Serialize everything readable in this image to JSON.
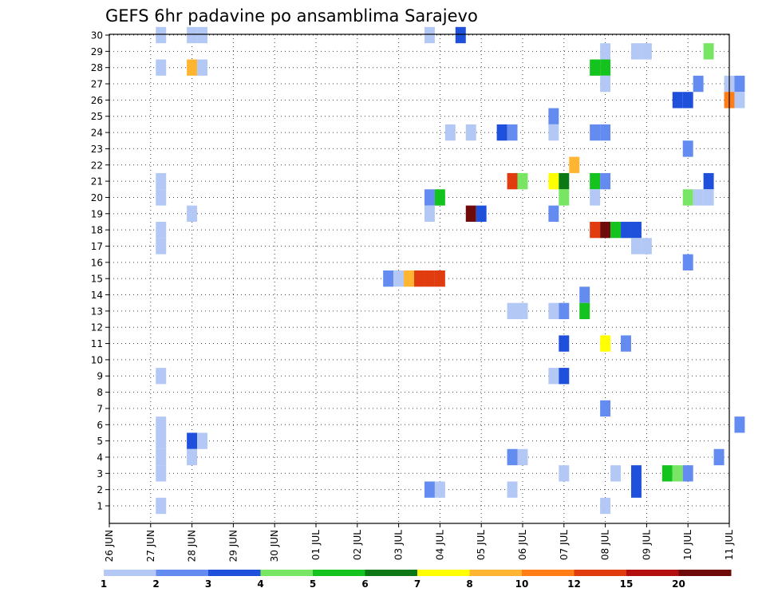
{
  "chart_data": {
    "type": "heatmap",
    "title": "GEFS 6hr padavine po ansamblima Sarajevo",
    "xlabel": "",
    "ylabel": "",
    "x_ticks": [
      "26 JUN",
      "27 JUN",
      "28 JUN",
      "29 JUN",
      "30 JUN",
      "01 JUL",
      "02 JUL",
      "03 JUL",
      "04 JUL",
      "05 JUL",
      "06 JUL",
      "07 JUL",
      "08 JUL",
      "09 JUL",
      "10 JUL",
      "11 JUL"
    ],
    "y_ticks": [
      1,
      2,
      3,
      4,
      5,
      6,
      7,
      8,
      9,
      10,
      11,
      12,
      13,
      14,
      15,
      16,
      17,
      18,
      19,
      20,
      21,
      22,
      23,
      24,
      25,
      26,
      27,
      28,
      29,
      30
    ],
    "xlim": [
      "26 JUN",
      "11 JUL"
    ],
    "ylim": [
      0,
      30
    ],
    "time_step_hours": 6,
    "grid": true,
    "colorbar": {
      "labels": [
        "1",
        "2",
        "3",
        "4",
        "5",
        "6",
        "7",
        "8",
        "10",
        "12",
        "15",
        "20"
      ],
      "colors": [
        "#b4c8f5",
        "#648cf0",
        "#1e50dc",
        "#78e664",
        "#14c31e",
        "#0a7814",
        "#ffff00",
        "#ffb432",
        "#ff7d14",
        "#e13c0f",
        "#b40f0f",
        "#6e0a0a"
      ]
    },
    "cells": [
      {
        "member": 30,
        "time": "27 JUN 06",
        "level": 1
      },
      {
        "member": 30,
        "time": "28 JUN 00",
        "level": 1
      },
      {
        "member": 30,
        "time": "28 JUN 06",
        "level": 1
      },
      {
        "member": 30,
        "time": "03 JUL 18",
        "level": 1
      },
      {
        "member": 30,
        "time": "04 JUL 12",
        "level": 3
      },
      {
        "member": 29,
        "time": "08 JUL 00",
        "level": 1
      },
      {
        "member": 29,
        "time": "08 JUL 18",
        "level": 1
      },
      {
        "member": 29,
        "time": "09 JUL 00",
        "level": 1
      },
      {
        "member": 29,
        "time": "10 JUL 12",
        "level": 4
      },
      {
        "member": 28,
        "time": "27 JUN 06",
        "level": 1
      },
      {
        "member": 28,
        "time": "28 JUN 00",
        "level": 8
      },
      {
        "member": 28,
        "time": "28 JUN 06",
        "level": 1
      },
      {
        "member": 28,
        "time": "07 JUL 18",
        "level": 5
      },
      {
        "member": 28,
        "time": "08 JUL 00",
        "level": 5
      },
      {
        "member": 27,
        "time": "08 JUL 00",
        "level": 1
      },
      {
        "member": 27,
        "time": "10 JUL 06",
        "level": 2
      },
      {
        "member": 27,
        "time": "11 JUL 00",
        "level": 1
      },
      {
        "member": 27,
        "time": "11 JUL 06",
        "level": 2
      },
      {
        "member": 26,
        "time": "09 JUL 18",
        "level": 3
      },
      {
        "member": 26,
        "time": "10 JUL 00",
        "level": 3
      },
      {
        "member": 26,
        "time": "11 JUL 00",
        "level": 9
      },
      {
        "member": 26,
        "time": "11 JUL 06",
        "level": 1
      },
      {
        "member": 25,
        "time": "06 JUL 18",
        "level": 2
      },
      {
        "member": 24,
        "time": "04 JUL 06",
        "level": 1
      },
      {
        "member": 24,
        "time": "04 JUL 18",
        "level": 1
      },
      {
        "member": 24,
        "time": "05 JUL 12",
        "level": 3
      },
      {
        "member": 24,
        "time": "05 JUL 18",
        "level": 2
      },
      {
        "member": 24,
        "time": "06 JUL 18",
        "level": 1
      },
      {
        "member": 24,
        "time": "07 JUL 18",
        "level": 2
      },
      {
        "member": 24,
        "time": "08 JUL 00",
        "level": 2
      },
      {
        "member": 23,
        "time": "10 JUL 00",
        "level": 2
      },
      {
        "member": 22,
        "time": "07 JUL 06",
        "level": 8
      },
      {
        "member": 21,
        "time": "27 JUN 06",
        "level": 1
      },
      {
        "member": 21,
        "time": "05 JUL 18",
        "level": 10
      },
      {
        "member": 21,
        "time": "06 JUL 00",
        "level": 4
      },
      {
        "member": 21,
        "time": "06 JUL 18",
        "level": 7
      },
      {
        "member": 21,
        "time": "07 JUL 00",
        "level": 6
      },
      {
        "member": 21,
        "time": "07 JUL 18",
        "level": 5
      },
      {
        "member": 21,
        "time": "08 JUL 00",
        "level": 2
      },
      {
        "member": 21,
        "time": "10 JUL 12",
        "level": 3
      },
      {
        "member": 20,
        "time": "27 JUN 06",
        "level": 1
      },
      {
        "member": 20,
        "time": "03 JUL 18",
        "level": 2
      },
      {
        "member": 20,
        "time": "04 JUL 00",
        "level": 5
      },
      {
        "member": 20,
        "time": "07 JUL 00",
        "level": 4
      },
      {
        "member": 20,
        "time": "07 JUL 18",
        "level": 1
      },
      {
        "member": 20,
        "time": "10 JUL 00",
        "level": 4
      },
      {
        "member": 20,
        "time": "10 JUL 06",
        "level": 1
      },
      {
        "member": 20,
        "time": "10 JUL 12",
        "level": 1
      },
      {
        "member": 19,
        "time": "28 JUN 00",
        "level": 1
      },
      {
        "member": 19,
        "time": "03 JUL 18",
        "level": 1
      },
      {
        "member": 19,
        "time": "04 JUL 18",
        "level": 12
      },
      {
        "member": 19,
        "time": "05 JUL 00",
        "level": 3
      },
      {
        "member": 19,
        "time": "06 JUL 18",
        "level": 2
      },
      {
        "member": 18,
        "time": "27 JUN 06",
        "level": 1
      },
      {
        "member": 18,
        "time": "07 JUL 18",
        "level": 10
      },
      {
        "member": 18,
        "time": "08 JUL 00",
        "level": 12
      },
      {
        "member": 18,
        "time": "08 JUL 06",
        "level": 5
      },
      {
        "member": 18,
        "time": "08 JUL 12",
        "level": 3
      },
      {
        "member": 18,
        "time": "08 JUL 18",
        "level": 3
      },
      {
        "member": 17,
        "time": "27 JUN 06",
        "level": 1
      },
      {
        "member": 17,
        "time": "08 JUL 18",
        "level": 1
      },
      {
        "member": 17,
        "time": "09 JUL 00",
        "level": 1
      },
      {
        "member": 16,
        "time": "10 JUL 00",
        "level": 2
      },
      {
        "member": 15,
        "time": "02 JUL 18",
        "level": 2
      },
      {
        "member": 15,
        "time": "03 JUL 00",
        "level": 1
      },
      {
        "member": 15,
        "time": "03 JUL 06",
        "level": 8
      },
      {
        "member": 15,
        "time": "03 JUL 12",
        "level": 10
      },
      {
        "member": 15,
        "time": "03 JUL 18",
        "level": 10
      },
      {
        "member": 15,
        "time": "04 JUL 00",
        "level": 10
      },
      {
        "member": 14,
        "time": "07 JUL 12",
        "level": 2
      },
      {
        "member": 13,
        "time": "05 JUL 18",
        "level": 1
      },
      {
        "member": 13,
        "time": "06 JUL 00",
        "level": 1
      },
      {
        "member": 13,
        "time": "06 JUL 18",
        "level": 1
      },
      {
        "member": 13,
        "time": "07 JUL 00",
        "level": 2
      },
      {
        "member": 13,
        "time": "07 JUL 12",
        "level": 5
      },
      {
        "member": 11,
        "time": "07 JUL 00",
        "level": 3
      },
      {
        "member": 11,
        "time": "08 JUL 00",
        "level": 7
      },
      {
        "member": 11,
        "time": "08 JUL 12",
        "level": 2
      },
      {
        "member": 9,
        "time": "27 JUN 06",
        "level": 1
      },
      {
        "member": 9,
        "time": "06 JUL 18",
        "level": 1
      },
      {
        "member": 9,
        "time": "07 JUL 00",
        "level": 3
      },
      {
        "member": 7,
        "time": "08 JUL 00",
        "level": 2
      },
      {
        "member": 6,
        "time": "27 JUN 06",
        "level": 1
      },
      {
        "member": 6,
        "time": "11 JUL 06",
        "level": 2
      },
      {
        "member": 5,
        "time": "27 JUN 06",
        "level": 1
      },
      {
        "member": 5,
        "time": "28 JUN 00",
        "level": 3
      },
      {
        "member": 5,
        "time": "28 JUN 06",
        "level": 1
      },
      {
        "member": 4,
        "time": "27 JUN 06",
        "level": 1
      },
      {
        "member": 4,
        "time": "28 JUN 00",
        "level": 1
      },
      {
        "member": 4,
        "time": "05 JUL 18",
        "level": 2
      },
      {
        "member": 4,
        "time": "06 JUL 00",
        "level": 1
      },
      {
        "member": 4,
        "time": "10 JUL 18",
        "level": 2
      },
      {
        "member": 3,
        "time": "27 JUN 06",
        "level": 1
      },
      {
        "member": 3,
        "time": "07 JUL 00",
        "level": 1
      },
      {
        "member": 3,
        "time": "08 JUL 06",
        "level": 1
      },
      {
        "member": 3,
        "time": "08 JUL 18",
        "level": 3
      },
      {
        "member": 3,
        "time": "09 JUL 12",
        "level": 5
      },
      {
        "member": 3,
        "time": "09 JUL 18",
        "level": 4
      },
      {
        "member": 3,
        "time": "10 JUL 00",
        "level": 2
      },
      {
        "member": 2,
        "time": "03 JUL 18",
        "level": 2
      },
      {
        "member": 2,
        "time": "04 JUL 00",
        "level": 1
      },
      {
        "member": 2,
        "time": "05 JUL 18",
        "level": 1
      },
      {
        "member": 2,
        "time": "08 JUL 18",
        "level": 3
      },
      {
        "member": 1,
        "time": "27 JUN 06",
        "level": 1
      },
      {
        "member": 1,
        "time": "08 JUL 00",
        "level": 1
      }
    ]
  }
}
